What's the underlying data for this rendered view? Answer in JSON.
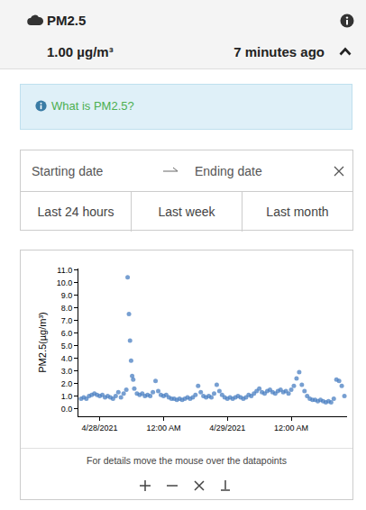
{
  "header": {
    "title": "PM2.5",
    "value": "1.00 µg/m³",
    "updated": "7 minutes ago"
  },
  "info": {
    "text": "What is PM2.5?"
  },
  "date_filter": {
    "start": "Starting date",
    "end": "Ending date",
    "presets": [
      "Last 24 hours",
      "Last week",
      "Last month"
    ]
  },
  "chart_data": {
    "type": "scatter",
    "y_label": "PM2.5(µg/m³)",
    "color": "#4a7fc1",
    "marker": "circle",
    "grid": false,
    "x": [
      -3.5,
      -3,
      -2.5,
      -2,
      -1.5,
      -1,
      -0.5,
      0,
      0.5,
      1,
      1.5,
      2,
      2.5,
      3,
      3.5,
      4,
      4.5,
      5,
      5.25,
      5.5,
      5.7,
      5.9,
      6.1,
      6.3,
      6.5,
      7,
      7.5,
      8,
      8.5,
      9,
      9.5,
      10,
      10.5,
      11,
      11.5,
      12,
      12.5,
      13,
      13.5,
      14,
      14.5,
      15,
      15.5,
      16,
      16.5,
      17,
      17.5,
      18,
      18.5,
      19,
      19.5,
      20,
      20.5,
      21,
      21.5,
      22,
      22.5,
      23,
      23.5,
      24,
      24.5,
      25,
      25.5,
      26,
      26.5,
      27,
      27.5,
      28,
      28.5,
      29,
      29.5,
      30,
      30.5,
      31,
      31.5,
      32,
      32.5,
      33,
      33.5,
      34,
      34.5,
      35,
      35.5,
      36,
      36.5,
      37,
      37.5,
      38,
      38.5,
      39,
      39.5,
      40,
      40.5,
      41,
      41.5,
      42,
      42.5,
      43,
      43.5,
      44,
      44.5,
      45,
      45.5,
      46
    ],
    "values": [
      0.8,
      0.9,
      0.8,
      1.0,
      1.1,
      1.2,
      1.1,
      1.0,
      1.1,
      0.9,
      1.0,
      0.9,
      0.8,
      1.0,
      1.3,
      0.9,
      1.2,
      1.5,
      10.4,
      7.5,
      5.4,
      3.8,
      2.6,
      2.3,
      1.6,
      1.2,
      1.1,
      1.2,
      1.0,
      1.1,
      1.0,
      1.3,
      2.2,
      1.4,
      1.1,
      1.0,
      1.1,
      0.9,
      0.8,
      0.8,
      0.7,
      0.8,
      0.7,
      0.8,
      0.9,
      0.8,
      0.9,
      1.1,
      1.8,
      1.3,
      1.0,
      0.9,
      1.0,
      0.9,
      1.2,
      1.9,
      1.4,
      1.1,
      0.9,
      0.8,
      0.9,
      0.8,
      0.9,
      1.0,
      0.9,
      0.8,
      0.9,
      1.1,
      1.0,
      1.2,
      1.4,
      1.6,
      1.3,
      1.2,
      1.4,
      1.5,
      1.3,
      1.2,
      1.4,
      1.5,
      1.3,
      1.4,
      1.2,
      1.5,
      1.8,
      2.4,
      2.9,
      1.9,
      1.4,
      1.0,
      0.8,
      0.7,
      0.7,
      0.6,
      0.7,
      0.6,
      0.5,
      0.6,
      0.5,
      0.8,
      2.3,
      2.2,
      1.8,
      1.0
    ],
    "xlim": [
      -4,
      46.5
    ],
    "xticks": [
      {
        "value": 0,
        "label": "4/28/2021"
      },
      {
        "value": 12,
        "label": "12:00 AM"
      },
      {
        "value": 24,
        "label": "4/29/2021"
      },
      {
        "value": 36,
        "label": "12:00 AM"
      }
    ],
    "ylim": [
      -0.6,
      11.1
    ],
    "yticks": [
      {
        "value": 0,
        "label": "0.0"
      },
      {
        "value": 1,
        "label": "1.0"
      },
      {
        "value": 2,
        "label": "2.0"
      },
      {
        "value": 3,
        "label": "3.0"
      },
      {
        "value": 4,
        "label": "4.0"
      },
      {
        "value": 5,
        "label": "5.0"
      },
      {
        "value": 6,
        "label": "6.0"
      },
      {
        "value": 7,
        "label": "7.0"
      },
      {
        "value": 8,
        "label": "8.0"
      },
      {
        "value": 9,
        "label": "9.0"
      },
      {
        "value": 10,
        "label": "10.0"
      },
      {
        "value": 11,
        "label": "11.0"
      }
    ]
  },
  "footer": {
    "hint": "For details move the mouse over the datapoints"
  }
}
